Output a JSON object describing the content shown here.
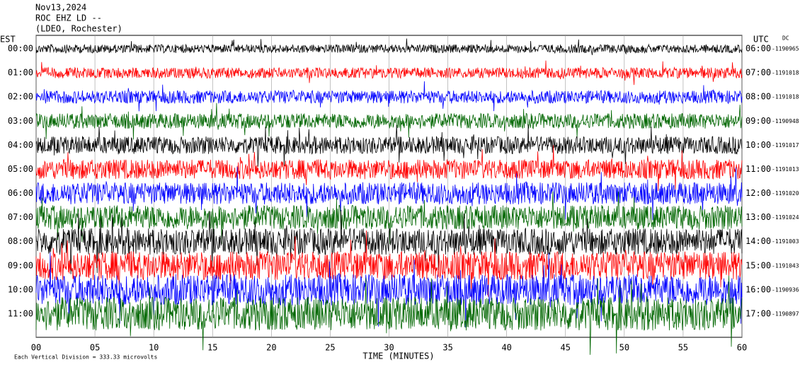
{
  "chart_data": {
    "type": "helicorder",
    "title": "Nov13,2024",
    "subtitle": "ROC EHZ LD --",
    "station": "(LDEO, Rochester)",
    "left_axis_label": "EST",
    "right_axis_label": "UTC",
    "dc_label": "DC",
    "x_label": "TIME (MINUTES)",
    "scale_note": "Each Vertical Division =  333.33 microvolts",
    "xlim": [
      0,
      60
    ],
    "xticks": [
      {
        "value": 0,
        "label": "00"
      },
      {
        "value": 5,
        "label": "05"
      },
      10,
      15,
      20,
      25,
      30,
      35,
      40,
      45,
      50,
      55,
      60
    ],
    "grid": true,
    "rows": [
      {
        "est": "00:00",
        "utc": "06:00",
        "dc": "-1190965",
        "color": "#000000"
      },
      {
        "est": "01:00",
        "utc": "07:00",
        "dc": "-1191018",
        "color": "#ff0000"
      },
      {
        "est": "02:00",
        "utc": "08:00",
        "dc": "-1191018",
        "color": "#0000ff"
      },
      {
        "est": "03:00",
        "utc": "09:00",
        "dc": "-1190948",
        "color": "#006600"
      },
      {
        "est": "04:00",
        "utc": "10:00",
        "dc": "-1191017",
        "color": "#000000"
      },
      {
        "est": "05:00",
        "utc": "11:00",
        "dc": "-1191013",
        "color": "#ff0000"
      },
      {
        "est": "06:00",
        "utc": "12:00",
        "dc": "-1191020",
        "color": "#0000ff"
      },
      {
        "est": "07:00",
        "utc": "13:00",
        "dc": "-1191024",
        "color": "#006600"
      },
      {
        "est": "08:00",
        "utc": "14:00",
        "dc": "-1191003",
        "color": "#000000"
      },
      {
        "est": "09:00",
        "utc": "15:00",
        "dc": "-1191043",
        "color": "#ff0000"
      },
      {
        "est": "10:00",
        "utc": "16:00",
        "dc": "-1190936",
        "color": "#0000ff"
      },
      {
        "est": "11:00",
        "utc": "17:00",
        "dc": "-1190897",
        "color": "#006600"
      }
    ]
  }
}
